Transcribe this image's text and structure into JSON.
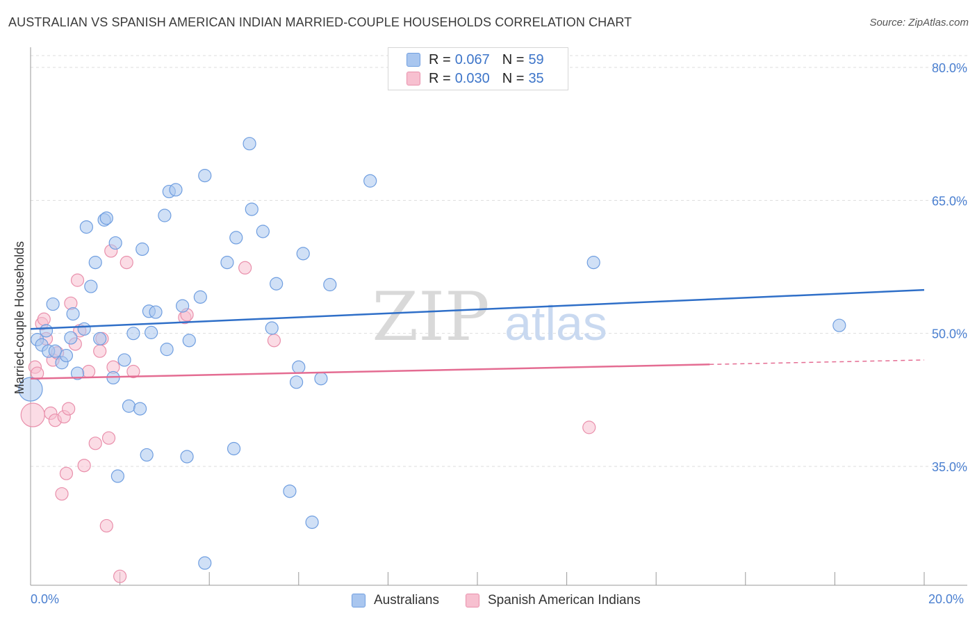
{
  "title": "AUSTRALIAN VS SPANISH AMERICAN INDIAN MARRIED-COUPLE HOUSEHOLDS CORRELATION CHART",
  "source": "Source: ZipAtlas.com",
  "watermark": {
    "zip": "ZIP",
    "atlas": "atlas"
  },
  "legend": {
    "r_label": "R =",
    "n_label": "N =",
    "rows": [
      {
        "r": "0.067",
        "n": "59",
        "color": "#a9c6ef",
        "border": "#6f9ee0"
      },
      {
        "r": "0.030",
        "n": "35",
        "color": "#f7c0d0",
        "border": "#e98fab"
      }
    ]
  },
  "bottom_legend": {
    "items": [
      {
        "label": "Australians",
        "color": "#a9c6ef",
        "border": "#6f9ee0"
      },
      {
        "label": "Spanish American Indians",
        "color": "#f7c0d0",
        "border": "#e98fab"
      }
    ]
  },
  "colors": {
    "blue_fill": "#a9c6ef",
    "blue_stroke": "#6f9ee0",
    "blue_line": "#2f6fc8",
    "pink_fill": "#f7c0d0",
    "pink_stroke": "#e98fab",
    "pink_line": "#e46c92",
    "grid": "#dddddd",
    "tick_text": "#4a7fd0"
  },
  "chart_data": {
    "type": "scatter",
    "title": "AUSTRALIAN VS SPANISH AMERICAN INDIAN MARRIED-COUPLE HOUSEHOLDS CORRELATION CHART",
    "xlabel": "",
    "ylabel": "Married-couple Households",
    "x_tick_labels": [
      "0.0%",
      "20.0%"
    ],
    "y_tick_labels": [
      "80.0%",
      "65.0%",
      "50.0%",
      "35.0%"
    ],
    "y_ticks": [
      80.0,
      65.0,
      50.0,
      35.0
    ],
    "xlim": [
      0,
      20
    ],
    "ylim": [
      20.5,
      82.5
    ],
    "grid": "horizontal dashed",
    "series": [
      {
        "name": "Australians",
        "trend": {
          "x": [
            0.0,
            20.0
          ],
          "y": [
            50.5,
            54.9
          ]
        },
        "points": [
          {
            "x": 0.0,
            "y": 43.7,
            "size": "large"
          },
          {
            "x": 0.15,
            "y": 49.3
          },
          {
            "x": 0.25,
            "y": 48.7
          },
          {
            "x": 0.35,
            "y": 50.3
          },
          {
            "x": 0.4,
            "y": 48.0
          },
          {
            "x": 0.5,
            "y": 53.3
          },
          {
            "x": 0.55,
            "y": 48.0
          },
          {
            "x": 0.7,
            "y": 46.7
          },
          {
            "x": 0.8,
            "y": 47.5
          },
          {
            "x": 0.9,
            "y": 49.5
          },
          {
            "x": 0.95,
            "y": 52.2
          },
          {
            "x": 1.05,
            "y": 45.5
          },
          {
            "x": 1.2,
            "y": 50.5
          },
          {
            "x": 1.25,
            "y": 62.0
          },
          {
            "x": 1.35,
            "y": 55.3
          },
          {
            "x": 1.45,
            "y": 58.0
          },
          {
            "x": 1.55,
            "y": 49.4
          },
          {
            "x": 1.65,
            "y": 62.8
          },
          {
            "x": 1.7,
            "y": 63.0
          },
          {
            "x": 1.85,
            "y": 45.0
          },
          {
            "x": 1.9,
            "y": 60.2
          },
          {
            "x": 2.1,
            "y": 47.0
          },
          {
            "x": 2.2,
            "y": 41.8
          },
          {
            "x": 2.3,
            "y": 50.0
          },
          {
            "x": 2.45,
            "y": 41.5
          },
          {
            "x": 2.5,
            "y": 59.5
          },
          {
            "x": 2.6,
            "y": 36.3
          },
          {
            "x": 2.65,
            "y": 52.5
          },
          {
            "x": 2.8,
            "y": 52.4
          },
          {
            "x": 2.7,
            "y": 50.1
          },
          {
            "x": 3.0,
            "y": 63.3
          },
          {
            "x": 3.05,
            "y": 48.2
          },
          {
            "x": 3.1,
            "y": 66.0
          },
          {
            "x": 3.25,
            "y": 66.2
          },
          {
            "x": 3.4,
            "y": 53.1
          },
          {
            "x": 3.5,
            "y": 36.1
          },
          {
            "x": 3.55,
            "y": 49.2
          },
          {
            "x": 3.8,
            "y": 54.1
          },
          {
            "x": 3.9,
            "y": 67.8
          },
          {
            "x": 4.4,
            "y": 58.0
          },
          {
            "x": 4.55,
            "y": 37.0
          },
          {
            "x": 4.6,
            "y": 60.8
          },
          {
            "x": 4.9,
            "y": 71.4
          },
          {
            "x": 4.95,
            "y": 64.0
          },
          {
            "x": 5.2,
            "y": 61.5
          },
          {
            "x": 5.4,
            "y": 50.6
          },
          {
            "x": 5.5,
            "y": 55.6
          },
          {
            "x": 5.8,
            "y": 32.2
          },
          {
            "x": 5.95,
            "y": 44.5
          },
          {
            "x": 6.0,
            "y": 46.2
          },
          {
            "x": 6.1,
            "y": 59.0
          },
          {
            "x": 6.3,
            "y": 28.7
          },
          {
            "x": 6.5,
            "y": 44.9
          },
          {
            "x": 6.7,
            "y": 55.5
          },
          {
            "x": 7.6,
            "y": 67.2
          },
          {
            "x": 12.6,
            "y": 58.0
          },
          {
            "x": 18.1,
            "y": 50.9
          },
          {
            "x": 3.9,
            "y": 24.1
          },
          {
            "x": 1.95,
            "y": 33.9
          }
        ]
      },
      {
        "name": "Spanish American Indians",
        "trend": {
          "x": [
            0.0,
            15.2
          ],
          "y": [
            44.9,
            46.5
          ]
        },
        "trend_dashed": {
          "x": [
            15.2,
            20.0
          ],
          "y": [
            46.5,
            47.0
          ]
        },
        "points": [
          {
            "x": 0.05,
            "y": 40.8,
            "size": "large"
          },
          {
            "x": 0.1,
            "y": 46.2
          },
          {
            "x": 0.15,
            "y": 45.5
          },
          {
            "x": 0.25,
            "y": 51.1
          },
          {
            "x": 0.3,
            "y": 51.6
          },
          {
            "x": 0.35,
            "y": 49.4
          },
          {
            "x": 0.45,
            "y": 41.0
          },
          {
            "x": 0.5,
            "y": 47.0
          },
          {
            "x": 0.55,
            "y": 40.2
          },
          {
            "x": 0.6,
            "y": 47.8
          },
          {
            "x": 0.7,
            "y": 31.9
          },
          {
            "x": 0.75,
            "y": 40.6
          },
          {
            "x": 0.8,
            "y": 34.2
          },
          {
            "x": 0.85,
            "y": 41.5
          },
          {
            "x": 0.9,
            "y": 53.4
          },
          {
            "x": 1.0,
            "y": 48.8
          },
          {
            "x": 1.05,
            "y": 56.0
          },
          {
            "x": 1.1,
            "y": 50.3
          },
          {
            "x": 1.2,
            "y": 35.1
          },
          {
            "x": 1.3,
            "y": 45.7
          },
          {
            "x": 1.45,
            "y": 37.6
          },
          {
            "x": 1.55,
            "y": 48.0
          },
          {
            "x": 1.6,
            "y": 49.4
          },
          {
            "x": 1.7,
            "y": 28.3
          },
          {
            "x": 1.75,
            "y": 38.2
          },
          {
            "x": 1.8,
            "y": 59.3
          },
          {
            "x": 1.85,
            "y": 46.2
          },
          {
            "x": 2.0,
            "y": 22.6
          },
          {
            "x": 2.15,
            "y": 58.0
          },
          {
            "x": 2.3,
            "y": 45.7
          },
          {
            "x": 3.45,
            "y": 51.8
          },
          {
            "x": 3.5,
            "y": 52.1
          },
          {
            "x": 4.8,
            "y": 57.4
          },
          {
            "x": 5.45,
            "y": 49.2
          },
          {
            "x": 12.5,
            "y": 39.4
          }
        ]
      }
    ]
  }
}
